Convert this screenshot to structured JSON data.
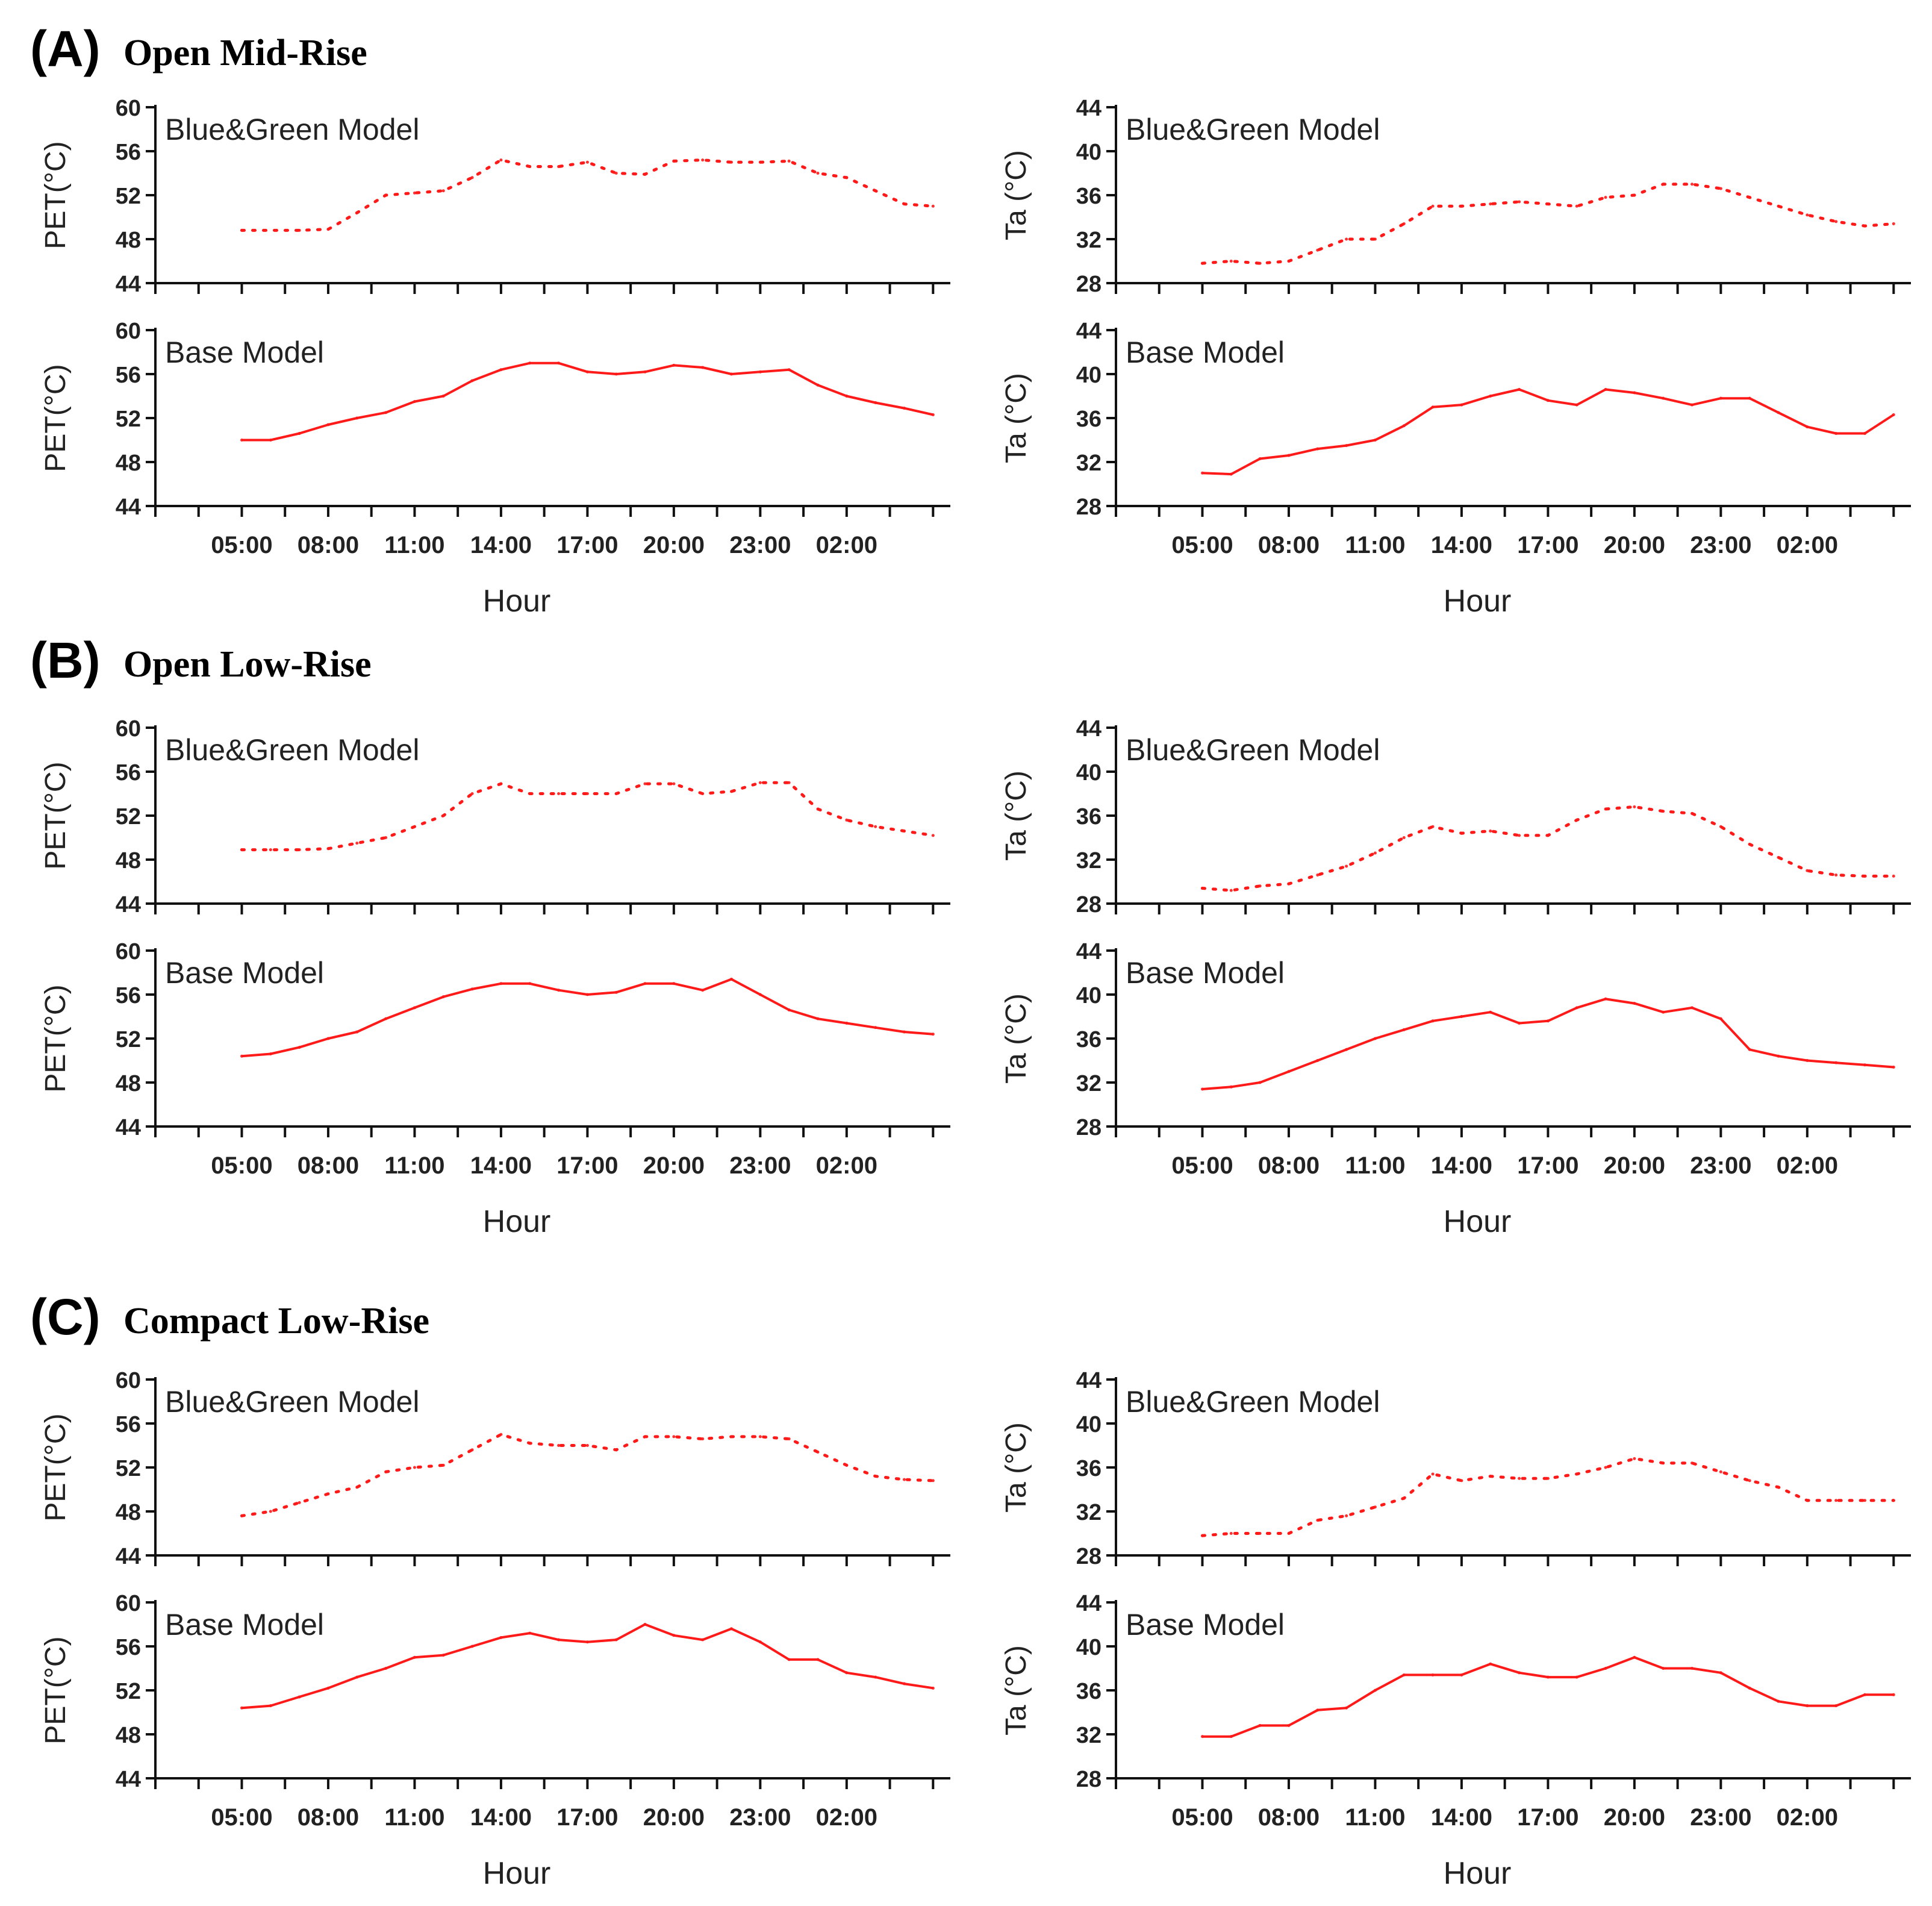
{
  "chart_data": [
    {
      "panel": "A",
      "title": "Open Mid-Rise",
      "xlabel": "Hour",
      "x_ticks": [
        "05:00",
        "08:00",
        "11:00",
        "14:00",
        "17:00",
        "20:00",
        "23:00",
        "02:00"
      ],
      "charts": [
        {
          "type": "line",
          "position": "left-top",
          "style": "dotted",
          "label": "Blue&Green Model",
          "ylabel": "PET(°C)",
          "ylim": [
            44,
            60
          ],
          "y_ticks": [
            44,
            48,
            52,
            56,
            60
          ],
          "x": [
            3,
            5,
            6,
            7,
            8,
            9,
            10,
            11,
            12,
            13,
            14,
            15,
            16,
            17,
            18,
            19,
            20,
            21,
            22,
            23,
            24,
            25,
            26,
            27
          ],
          "y": [
            48.8,
            48.8,
            48.9,
            50.4,
            52.0,
            52.2,
            52.4,
            53.6,
            55.2,
            54.6,
            54.6,
            55.0,
            54.0,
            53.9,
            55.1,
            55.2,
            55.0,
            55.0,
            55.1,
            54.0,
            53.6,
            52.4,
            51.2,
            51.0
          ]
        },
        {
          "type": "line",
          "position": "left-bottom",
          "style": "solid",
          "label": "Base Model",
          "ylabel": "PET(°C)",
          "ylim": [
            44,
            60
          ],
          "y_ticks": [
            44,
            48,
            52,
            56,
            60
          ],
          "x": [
            3,
            4,
            5,
            6,
            7,
            8,
            9,
            10,
            11,
            12,
            13,
            14,
            15,
            16,
            17,
            18,
            19,
            20,
            21,
            22,
            23,
            24,
            25,
            26,
            27
          ],
          "y": [
            50.0,
            50.0,
            50.6,
            51.4,
            52.0,
            52.5,
            53.5,
            54.0,
            55.4,
            56.4,
            57.0,
            57.0,
            56.2,
            56.0,
            56.2,
            56.8,
            56.6,
            56.0,
            56.2,
            56.4,
            55.0,
            54.0,
            53.4,
            52.9,
            52.3
          ]
        },
        {
          "type": "line",
          "position": "right-top",
          "style": "dotted",
          "label": "Blue&Green Model",
          "ylabel": "Ta (°C)",
          "ylim": [
            28,
            44
          ],
          "y_ticks": [
            28,
            32,
            36,
            40,
            44
          ],
          "x": [
            3,
            4,
            5,
            6,
            7,
            8,
            9,
            10,
            11,
            12,
            13,
            14,
            15,
            16,
            17,
            18,
            19,
            20,
            21,
            22,
            23,
            24,
            25,
            26,
            27
          ],
          "y": [
            29.8,
            30.0,
            29.8,
            30.0,
            31.0,
            32.0,
            32.0,
            33.4,
            35.0,
            35.0,
            35.2,
            35.4,
            35.2,
            35.0,
            35.8,
            36.0,
            37.0,
            37.0,
            36.6,
            35.8,
            35.0,
            34.2,
            33.6,
            33.2,
            33.4
          ]
        },
        {
          "type": "line",
          "position": "right-bottom",
          "style": "solid",
          "label": "Base Model",
          "ylabel": "Ta (°C)",
          "ylim": [
            28,
            44
          ],
          "y_ticks": [
            28,
            32,
            36,
            40,
            44
          ],
          "x": [
            3,
            4,
            5,
            6,
            7,
            8,
            9,
            10,
            11,
            12,
            13,
            14,
            15,
            16,
            17,
            18,
            19,
            20,
            21,
            22,
            23,
            24,
            25,
            26,
            27
          ],
          "y": [
            31.0,
            30.9,
            32.3,
            32.6,
            33.2,
            33.5,
            34.0,
            35.3,
            37.0,
            37.2,
            38.0,
            38.6,
            37.6,
            37.2,
            38.6,
            38.3,
            37.8,
            37.2,
            37.8,
            37.8,
            36.5,
            35.2,
            34.6,
            34.6,
            36.3
          ]
        }
      ]
    },
    {
      "panel": "B",
      "title": "Open Low-Rise",
      "xlabel": "Hour",
      "x_ticks": [
        "05:00",
        "08:00",
        "11:00",
        "14:00",
        "17:00",
        "20:00",
        "23:00",
        "02:00"
      ],
      "charts": [
        {
          "type": "line",
          "position": "left-top",
          "style": "dotted",
          "label": "Blue&Green Model",
          "ylabel": "PET(°C)",
          "ylim": [
            44,
            60
          ],
          "y_ticks": [
            44,
            48,
            52,
            56,
            60
          ],
          "x": [
            3,
            4,
            5,
            6,
            7,
            8,
            9,
            10,
            11,
            12,
            13,
            14,
            15,
            16,
            17,
            18,
            19,
            20,
            21,
            22,
            23,
            24,
            25,
            26,
            27
          ],
          "y": [
            48.9,
            48.9,
            48.9,
            49.0,
            49.5,
            50.0,
            51.0,
            52.0,
            54.0,
            54.9,
            54.0,
            54.0,
            54.0,
            54.0,
            54.9,
            54.9,
            54.0,
            54.2,
            55.0,
            55.0,
            52.6,
            51.6,
            51.0,
            50.6,
            50.2
          ]
        },
        {
          "type": "line",
          "position": "left-bottom",
          "style": "solid",
          "label": "Base Model",
          "ylabel": "PET(°C)",
          "ylim": [
            44,
            60
          ],
          "y_ticks": [
            44,
            48,
            52,
            56,
            60
          ],
          "x": [
            3,
            4,
            5,
            6,
            7,
            8,
            9,
            10,
            11,
            12,
            13,
            14,
            15,
            16,
            17,
            18,
            19,
            20,
            21,
            22,
            23,
            24,
            25,
            26,
            27
          ],
          "y": [
            50.4,
            50.6,
            51.2,
            52.0,
            52.6,
            53.8,
            54.8,
            55.8,
            56.5,
            57.0,
            57.0,
            56.4,
            56.0,
            56.2,
            57.0,
            57.0,
            56.4,
            57.4,
            56.0,
            54.6,
            53.8,
            53.4,
            53.0,
            52.6,
            52.4
          ]
        },
        {
          "type": "line",
          "position": "right-top",
          "style": "dotted",
          "label": "Blue&Green Model",
          "ylabel": "Ta (°C)",
          "ylim": [
            28,
            44
          ],
          "y_ticks": [
            28,
            32,
            36,
            40,
            44
          ],
          "x": [
            3,
            4,
            5,
            6,
            7,
            8,
            9,
            10,
            11,
            12,
            13,
            14,
            15,
            16,
            17,
            18,
            19,
            20,
            21,
            22,
            23,
            24,
            25,
            26,
            27
          ],
          "y": [
            29.4,
            29.2,
            29.6,
            29.8,
            30.6,
            31.4,
            32.6,
            34.0,
            35.0,
            34.4,
            34.6,
            34.2,
            34.2,
            35.6,
            36.6,
            36.8,
            36.4,
            36.2,
            35.0,
            33.4,
            32.2,
            31.0,
            30.6,
            30.5,
            30.5
          ]
        },
        {
          "type": "line",
          "position": "right-bottom",
          "style": "solid",
          "label": "Base Model",
          "ylabel": "Ta (°C)",
          "ylim": [
            28,
            44
          ],
          "y_ticks": [
            28,
            32,
            36,
            40,
            44
          ],
          "x": [
            3,
            4,
            5,
            6,
            7,
            8,
            9,
            10,
            11,
            12,
            13,
            14,
            15,
            16,
            17,
            18,
            19,
            20,
            21,
            22,
            23,
            24,
            25,
            26,
            27
          ],
          "y": [
            31.4,
            31.6,
            32.0,
            33.0,
            34.0,
            35.0,
            36.0,
            36.8,
            37.6,
            38.0,
            38.4,
            37.4,
            37.6,
            38.8,
            39.6,
            39.2,
            38.4,
            38.8,
            37.8,
            35.0,
            34.4,
            34.0,
            33.8,
            33.6,
            33.4
          ]
        }
      ]
    },
    {
      "panel": "C",
      "title": "Compact Low-Rise",
      "xlabel": "Hour",
      "x_ticks": [
        "05:00",
        "08:00",
        "11:00",
        "14:00",
        "17:00",
        "20:00",
        "23:00",
        "02:00"
      ],
      "charts": [
        {
          "type": "line",
          "position": "left-top",
          "style": "dotted",
          "label": "Blue&Green Model",
          "ylabel": "PET(°C)",
          "ylim": [
            44,
            60
          ],
          "y_ticks": [
            44,
            48,
            52,
            56,
            60
          ],
          "x": [
            3,
            4,
            5,
            6,
            7,
            8,
            9,
            10,
            11,
            12,
            13,
            14,
            15,
            16,
            17,
            18,
            19,
            20,
            21,
            22,
            23,
            24,
            25,
            26,
            27
          ],
          "y": [
            47.6,
            48.0,
            48.8,
            49.6,
            50.2,
            51.6,
            52.0,
            52.2,
            53.6,
            55.0,
            54.2,
            54.0,
            54.0,
            53.6,
            54.8,
            54.8,
            54.6,
            54.8,
            54.8,
            54.6,
            53.4,
            52.2,
            51.2,
            50.9,
            50.8
          ]
        },
        {
          "type": "line",
          "position": "left-bottom",
          "style": "solid",
          "label": "Base Model",
          "ylabel": "PET(°C)",
          "ylim": [
            44,
            60
          ],
          "y_ticks": [
            44,
            48,
            52,
            56,
            60
          ],
          "x": [
            3,
            4,
            5,
            6,
            7,
            8,
            9,
            10,
            11,
            12,
            13,
            14,
            15,
            16,
            17,
            18,
            19,
            20,
            21,
            22,
            23,
            24,
            25,
            26,
            27
          ],
          "y": [
            50.4,
            50.6,
            51.4,
            52.2,
            53.2,
            54.0,
            55.0,
            55.2,
            56.0,
            56.8,
            57.2,
            56.6,
            56.4,
            56.6,
            58.0,
            57.0,
            56.6,
            57.6,
            56.4,
            54.8,
            54.8,
            53.6,
            53.2,
            52.6,
            52.2
          ]
        },
        {
          "type": "line",
          "position": "right-top",
          "style": "dotted",
          "label": "Blue&Green Model",
          "ylabel": "Ta (°C)",
          "ylim": [
            28,
            44
          ],
          "y_ticks": [
            28,
            32,
            36,
            40,
            44
          ],
          "x": [
            3,
            4,
            5,
            6,
            7,
            8,
            9,
            10,
            11,
            12,
            13,
            14,
            15,
            16,
            17,
            18,
            19,
            20,
            21,
            22,
            23,
            24,
            25,
            26,
            27
          ],
          "y": [
            29.8,
            30.0,
            30.0,
            30.0,
            31.2,
            31.6,
            32.4,
            33.2,
            35.4,
            34.8,
            35.2,
            35.0,
            35.0,
            35.4,
            36.0,
            36.8,
            36.4,
            36.4,
            35.6,
            34.8,
            34.2,
            33.0,
            33.0,
            33.0,
            33.0
          ]
        },
        {
          "type": "line",
          "position": "right-bottom",
          "style": "solid",
          "label": "Base Model",
          "ylabel": "Ta (°C)",
          "ylim": [
            28,
            44
          ],
          "y_ticks": [
            28,
            32,
            36,
            40,
            44
          ],
          "x": [
            3,
            4,
            5,
            6,
            7,
            8,
            9,
            10,
            11,
            12,
            13,
            14,
            15,
            16,
            17,
            18,
            19,
            20,
            21,
            22,
            23,
            24,
            25,
            26,
            27
          ],
          "y": [
            31.8,
            31.8,
            32.8,
            32.8,
            34.2,
            34.4,
            36.0,
            37.4,
            37.4,
            37.4,
            38.4,
            37.6,
            37.2,
            37.2,
            38.0,
            39.0,
            38.0,
            38.0,
            37.6,
            36.2,
            35.0,
            34.6,
            34.6,
            35.6,
            35.6
          ]
        }
      ]
    }
  ]
}
